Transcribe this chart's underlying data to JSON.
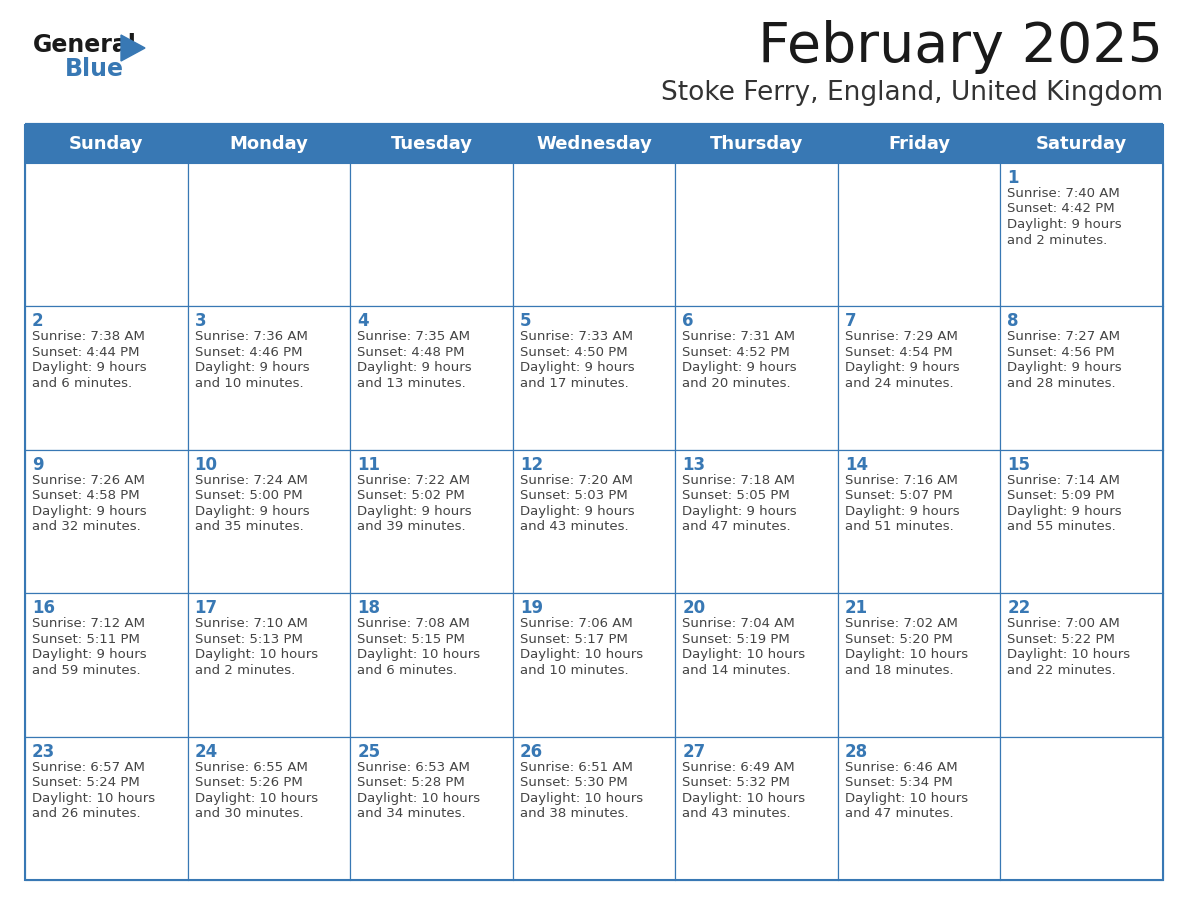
{
  "title": "February 2025",
  "subtitle": "Stoke Ferry, England, United Kingdom",
  "days_of_week": [
    "Sunday",
    "Monday",
    "Tuesday",
    "Wednesday",
    "Thursday",
    "Friday",
    "Saturday"
  ],
  "header_bg": "#3878b4",
  "header_text": "#ffffff",
  "cell_bg": "#ffffff",
  "border_color": "#3878b4",
  "text_color": "#444444",
  "day_number_color": "#3878b4",
  "title_color": "#1a1a1a",
  "subtitle_color": "#333333",
  "logo_general_color": "#1a1a1a",
  "logo_blue_color": "#3878b4",
  "calendar_data": [
    [
      {
        "day": null,
        "info": ""
      },
      {
        "day": null,
        "info": ""
      },
      {
        "day": null,
        "info": ""
      },
      {
        "day": null,
        "info": ""
      },
      {
        "day": null,
        "info": ""
      },
      {
        "day": null,
        "info": ""
      },
      {
        "day": 1,
        "info": "Sunrise: 7:40 AM\nSunset: 4:42 PM\nDaylight: 9 hours\nand 2 minutes."
      }
    ],
    [
      {
        "day": 2,
        "info": "Sunrise: 7:38 AM\nSunset: 4:44 PM\nDaylight: 9 hours\nand 6 minutes."
      },
      {
        "day": 3,
        "info": "Sunrise: 7:36 AM\nSunset: 4:46 PM\nDaylight: 9 hours\nand 10 minutes."
      },
      {
        "day": 4,
        "info": "Sunrise: 7:35 AM\nSunset: 4:48 PM\nDaylight: 9 hours\nand 13 minutes."
      },
      {
        "day": 5,
        "info": "Sunrise: 7:33 AM\nSunset: 4:50 PM\nDaylight: 9 hours\nand 17 minutes."
      },
      {
        "day": 6,
        "info": "Sunrise: 7:31 AM\nSunset: 4:52 PM\nDaylight: 9 hours\nand 20 minutes."
      },
      {
        "day": 7,
        "info": "Sunrise: 7:29 AM\nSunset: 4:54 PM\nDaylight: 9 hours\nand 24 minutes."
      },
      {
        "day": 8,
        "info": "Sunrise: 7:27 AM\nSunset: 4:56 PM\nDaylight: 9 hours\nand 28 minutes."
      }
    ],
    [
      {
        "day": 9,
        "info": "Sunrise: 7:26 AM\nSunset: 4:58 PM\nDaylight: 9 hours\nand 32 minutes."
      },
      {
        "day": 10,
        "info": "Sunrise: 7:24 AM\nSunset: 5:00 PM\nDaylight: 9 hours\nand 35 minutes."
      },
      {
        "day": 11,
        "info": "Sunrise: 7:22 AM\nSunset: 5:02 PM\nDaylight: 9 hours\nand 39 minutes."
      },
      {
        "day": 12,
        "info": "Sunrise: 7:20 AM\nSunset: 5:03 PM\nDaylight: 9 hours\nand 43 minutes."
      },
      {
        "day": 13,
        "info": "Sunrise: 7:18 AM\nSunset: 5:05 PM\nDaylight: 9 hours\nand 47 minutes."
      },
      {
        "day": 14,
        "info": "Sunrise: 7:16 AM\nSunset: 5:07 PM\nDaylight: 9 hours\nand 51 minutes."
      },
      {
        "day": 15,
        "info": "Sunrise: 7:14 AM\nSunset: 5:09 PM\nDaylight: 9 hours\nand 55 minutes."
      }
    ],
    [
      {
        "day": 16,
        "info": "Sunrise: 7:12 AM\nSunset: 5:11 PM\nDaylight: 9 hours\nand 59 minutes."
      },
      {
        "day": 17,
        "info": "Sunrise: 7:10 AM\nSunset: 5:13 PM\nDaylight: 10 hours\nand 2 minutes."
      },
      {
        "day": 18,
        "info": "Sunrise: 7:08 AM\nSunset: 5:15 PM\nDaylight: 10 hours\nand 6 minutes."
      },
      {
        "day": 19,
        "info": "Sunrise: 7:06 AM\nSunset: 5:17 PM\nDaylight: 10 hours\nand 10 minutes."
      },
      {
        "day": 20,
        "info": "Sunrise: 7:04 AM\nSunset: 5:19 PM\nDaylight: 10 hours\nand 14 minutes."
      },
      {
        "day": 21,
        "info": "Sunrise: 7:02 AM\nSunset: 5:20 PM\nDaylight: 10 hours\nand 18 minutes."
      },
      {
        "day": 22,
        "info": "Sunrise: 7:00 AM\nSunset: 5:22 PM\nDaylight: 10 hours\nand 22 minutes."
      }
    ],
    [
      {
        "day": 23,
        "info": "Sunrise: 6:57 AM\nSunset: 5:24 PM\nDaylight: 10 hours\nand 26 minutes."
      },
      {
        "day": 24,
        "info": "Sunrise: 6:55 AM\nSunset: 5:26 PM\nDaylight: 10 hours\nand 30 minutes."
      },
      {
        "day": 25,
        "info": "Sunrise: 6:53 AM\nSunset: 5:28 PM\nDaylight: 10 hours\nand 34 minutes."
      },
      {
        "day": 26,
        "info": "Sunrise: 6:51 AM\nSunset: 5:30 PM\nDaylight: 10 hours\nand 38 minutes."
      },
      {
        "day": 27,
        "info": "Sunrise: 6:49 AM\nSunset: 5:32 PM\nDaylight: 10 hours\nand 43 minutes."
      },
      {
        "day": 28,
        "info": "Sunrise: 6:46 AM\nSunset: 5:34 PM\nDaylight: 10 hours\nand 47 minutes."
      },
      {
        "day": null,
        "info": ""
      }
    ]
  ]
}
